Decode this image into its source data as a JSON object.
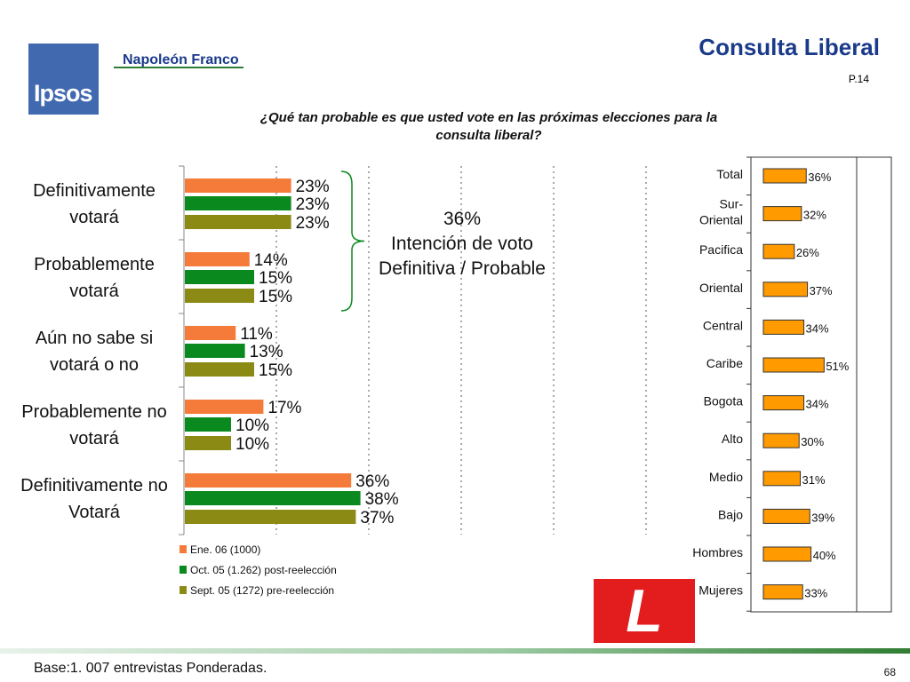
{
  "header": {
    "logo_text": "Ipsos",
    "brand": "Napoleón Franco",
    "title": "Consulta Liberal",
    "page_label": "P.14"
  },
  "question": "¿Qué tan probable es que usted vote en las próximas elecciones para la consulta liberal?",
  "annotation": {
    "line1": "36%",
    "line2": "Intención de voto",
    "line3": "Definitiva / Probable"
  },
  "liberal_logo_text": "L",
  "footer": {
    "base": "Base:1. 007 entrevistas Ponderadas.",
    "page_number": "68"
  },
  "colors": {
    "ene": "#f47b3a",
    "oct": "#0a8a1e",
    "sept": "#8a8a14",
    "region": "#ff9a00",
    "brand": "#1a3a8a",
    "logo_red": "#e31d1d"
  },
  "chart_data": [
    {
      "type": "bar",
      "orientation": "horizontal",
      "categories": [
        [
          "Definitivamente",
          "votará"
        ],
        [
          "Probablemente",
          "votará"
        ],
        [
          "Aún no sabe si",
          "votará o no"
        ],
        [
          "Probablemente no",
          "votará"
        ],
        [
          "Definitivamente no",
          "Votará"
        ]
      ],
      "series": [
        {
          "name": "Ene. 06 (1000)",
          "values": [
            23,
            14,
            11,
            17,
            36
          ]
        },
        {
          "name": "Oct. 05 (1.262) post-reelección",
          "values": [
            23,
            15,
            13,
            10,
            38
          ]
        },
        {
          "name": "Sept. 05 (1272) pre-reelección",
          "values": [
            23,
            15,
            15,
            10,
            37
          ]
        }
      ],
      "value_suffix": "%",
      "xlim": [
        0,
        50
      ],
      "grid": true,
      "legend_position": "bottom"
    },
    {
      "type": "bar",
      "orientation": "horizontal",
      "categories": [
        [
          "Total"
        ],
        [
          "Sur-",
          "Oriental"
        ],
        [
          "Pacifica"
        ],
        [
          "Oriental"
        ],
        [
          "Central"
        ],
        [
          "Caribe"
        ],
        [
          "Bogota"
        ],
        [
          "Alto"
        ],
        [
          "Medio"
        ],
        [
          "Bajo"
        ],
        [
          "Hombres"
        ],
        [
          "Mujeres"
        ]
      ],
      "series": [
        {
          "values": [
            36,
            32,
            26,
            37,
            34,
            51,
            34,
            30,
            31,
            39,
            40,
            33
          ]
        }
      ],
      "value_suffix": "%",
      "xlim": [
        0,
        60
      ],
      "grid": false
    }
  ]
}
